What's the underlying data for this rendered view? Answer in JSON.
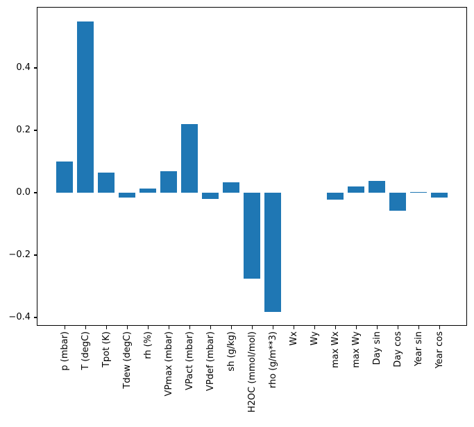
{
  "chart_data": {
    "type": "bar",
    "title": "",
    "xlabel": "",
    "ylabel": "",
    "bar_color": "#1f77b4",
    "background_color": "#ffffff",
    "axis_color": "#000000",
    "grid": false,
    "legend": "none",
    "x_tick_rotation_degrees": 90,
    "categories": [
      "p (mbar)",
      "T (degC)",
      "Tpot (K)",
      "Tdew (degC)",
      "rh (%)",
      "VPmax (mbar)",
      "VPact (mbar)",
      "VPdef (mbar)",
      "sh (g/kg)",
      "H2OC (mmol/mol)",
      "rho (g/m**3)",
      "Wx",
      "Wy",
      "max Wx",
      "max Wy",
      "Day sin",
      "Day cos",
      "Year sin",
      "Year cos"
    ],
    "values": [
      0.099,
      0.55,
      0.064,
      -0.016,
      0.014,
      0.068,
      0.22,
      -0.019,
      0.034,
      -0.275,
      -0.382,
      0.0,
      0.0,
      -0.023,
      0.019,
      0.038,
      -0.058,
      0.002,
      -0.016
    ],
    "ylim": [
      -0.427,
      0.596
    ],
    "yticks": [
      {
        "label": "0.4",
        "value": 0.4
      },
      {
        "label": "0.2",
        "value": 0.2
      },
      {
        "label": "0.0",
        "value": 0.0
      },
      {
        "label": "−0.2",
        "value": -0.2
      },
      {
        "label": "−0.4",
        "value": -0.4
      }
    ]
  }
}
